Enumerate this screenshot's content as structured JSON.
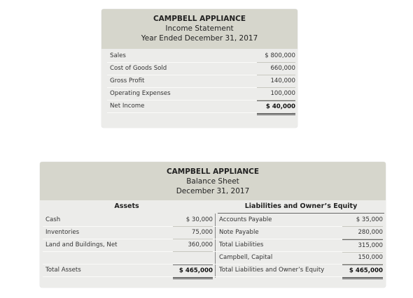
{
  "income_statement": {
    "company": "CAMPBELL APPLIANCE",
    "title": "Income Statement",
    "date": "Year Ended December 31, 2017",
    "rows": [
      [
        "Sales",
        "$ 800,000"
      ],
      [
        "Cost of Goods Sold",
        "660,000"
      ],
      [
        "Gross Profit",
        "140,000"
      ],
      [
        "Operating Expenses",
        "100,000"
      ],
      [
        "Net Income",
        "$  40,000"
      ]
    ]
  },
  "balance_sheet": {
    "company": "CAMPBELL APPLIANCE",
    "title": "Balance Sheet",
    "date": "December 31, 2017",
    "assets": {
      "heading": "Assets",
      "rows": [
        [
          "Cash",
          "$  30,000"
        ],
        [
          "Inventories",
          "75,000"
        ],
        [
          "Land and Buildings, Net",
          "360,000"
        ]
      ],
      "total": [
        "Total Assets",
        "$ 465,000"
      ]
    },
    "liabilities": {
      "heading": "Liabilities and Owner’s Equity",
      "rows": [
        [
          "Accounts Payable",
          "$  35,000"
        ],
        [
          "Note Payable",
          "280,000"
        ],
        [
          "Total Liabilities",
          "315,000"
        ],
        [
          "Campbell, Capital",
          "150,000"
        ],
        [
          "Total Liabilities and Owner’s Equity",
          "$ 465,000"
        ]
      ]
    }
  }
}
